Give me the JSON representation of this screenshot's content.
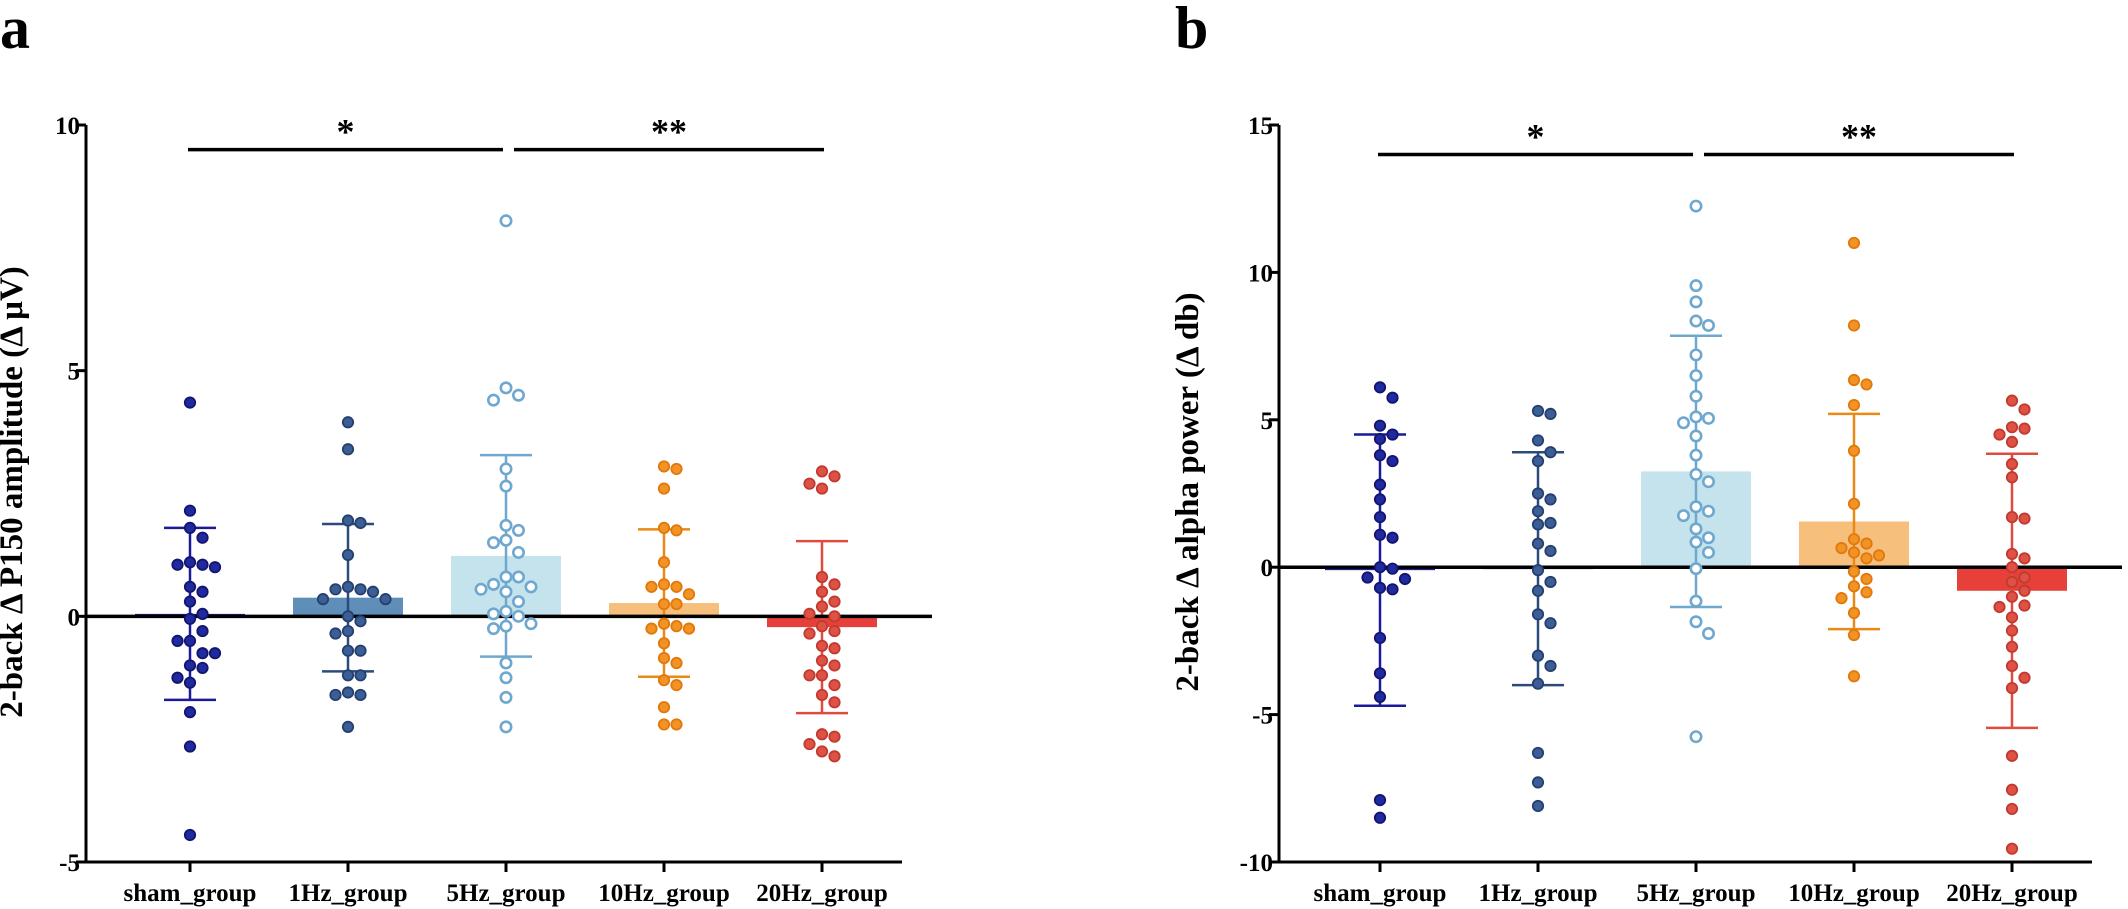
{
  "colors": {
    "sham_group": {
      "bar": "#1f1f9c",
      "point_fill": "#1f2a9e",
      "point_edge": "#141470",
      "error": "#1a1a9a",
      "hollow": false
    },
    "1Hz_group": {
      "bar": "#5f8fb9",
      "point_fill": "#3c5d96",
      "point_edge": "#24406e",
      "error": "#2c4b7d",
      "hollow": false
    },
    "5Hz_group": {
      "bar": "#c5e3ec",
      "point_fill": "#ffffff",
      "point_edge": "#6fa8cf",
      "error": "#6fa8cf",
      "hollow": true
    },
    "10Hz_group": {
      "bar": "#f6bf7c",
      "point_fill": "#f29325",
      "point_edge": "#e2780c",
      "error": "#e98a14",
      "hollow": false
    },
    "20Hz_group": {
      "bar": "#e7403a",
      "point_fill": "#de5145",
      "point_edge": "#c23a2f",
      "error": "#e04b40",
      "hollow": false
    }
  },
  "chart_data": [
    {
      "panel": "a",
      "type": "bar",
      "ylabel": "2-back Δ P150 amplitude (Δ μV)",
      "xlabel": "",
      "ylim": [
        -5,
        10
      ],
      "yticks": [
        -5,
        0,
        5,
        10
      ],
      "ytick_labels": [
        "-5",
        "0",
        "5",
        "10"
      ],
      "categories": [
        "sham_group",
        "1Hz_group",
        "5Hz_group",
        "10Hz_group",
        "20Hz_group"
      ],
      "means": [
        0.05,
        0.38,
        1.23,
        0.27,
        -0.22
      ],
      "sd": [
        1.75,
        1.5,
        2.05,
        1.5,
        1.75
      ],
      "points": [
        [
          4.35,
          2.15,
          1.8,
          1.6,
          1.1,
          1.05,
          1.05,
          1.0,
          0.6,
          0.5,
          0.3,
          0.05,
          -0.05,
          -0.3,
          -0.5,
          -0.5,
          -0.75,
          -0.75,
          -1.0,
          -1.05,
          -1.25,
          -1.35,
          -1.95,
          -2.65,
          -4.45
        ],
        [
          3.95,
          3.4,
          1.95,
          1.9,
          1.25,
          0.6,
          0.55,
          0.5,
          0.55,
          0.35,
          0.35,
          0.0,
          -0.1,
          -0.3,
          -0.35,
          -0.7,
          -0.7,
          -1.2,
          -1.2,
          -1.55,
          -1.6,
          -1.6,
          -2.25
        ],
        [
          8.05,
          4.65,
          4.5,
          4.4,
          3.0,
          2.65,
          1.85,
          1.75,
          1.55,
          1.5,
          1.3,
          0.8,
          0.8,
          0.65,
          0.6,
          0.55,
          0.5,
          0.3,
          0.1,
          0.05,
          0.0,
          -0.15,
          -0.2,
          -0.25,
          -0.95,
          -1.25,
          -1.65,
          -2.25
        ],
        [
          3.05,
          3.0,
          2.6,
          1.8,
          1.75,
          1.1,
          0.65,
          0.6,
          0.6,
          0.45,
          0.25,
          0.25,
          -0.15,
          -0.2,
          -0.25,
          -0.25,
          -0.55,
          -0.85,
          -0.95,
          -1.3,
          -1.4,
          -1.85,
          -2.2,
          -2.2
        ],
        [
          2.95,
          2.85,
          2.7,
          2.6,
          0.8,
          0.65,
          0.5,
          0.3,
          0.2,
          0.05,
          0.0,
          -0.2,
          -0.3,
          -0.35,
          -0.6,
          -0.65,
          -0.9,
          -1.0,
          -1.2,
          -1.2,
          -1.4,
          -1.6,
          -1.75,
          -2.4,
          -2.45,
          -2.6,
          -2.75,
          -2.85
        ]
      ],
      "significance": [
        {
          "from": 0,
          "to": 2,
          "label": "*",
          "y": 9.5
        },
        {
          "from": 2,
          "to": 4,
          "label": "**",
          "y": 9.5
        }
      ]
    },
    {
      "panel": "b",
      "type": "bar",
      "ylabel": "2-back Δ alpha power (Δ db)",
      "xlabel": "",
      "ylim": [
        -10,
        15
      ],
      "yticks": [
        -10,
        -5,
        0,
        5,
        10,
        15
      ],
      "ytick_labels": [
        "-10",
        "-5",
        "0",
        "5",
        "10",
        "15"
      ],
      "categories": [
        "sham_group",
        "1Hz_group",
        "5Hz_group",
        "10Hz_group",
        "20Hz_group"
      ],
      "means": [
        -0.1,
        -0.05,
        3.25,
        1.55,
        -0.8
      ],
      "sd": [
        4.6,
        3.95,
        4.6,
        3.65,
        4.65
      ],
      "points": [
        [
          6.1,
          5.75,
          4.8,
          4.5,
          4.35,
          3.8,
          3.6,
          2.8,
          2.3,
          1.7,
          1.1,
          1.0,
          0.0,
          -0.05,
          -0.35,
          -0.4,
          -0.7,
          -0.75,
          -2.4,
          -3.6,
          -4.4,
          -7.9,
          -8.5
        ],
        [
          5.3,
          5.2,
          4.3,
          3.9,
          3.6,
          2.5,
          2.3,
          1.9,
          1.5,
          1.45,
          0.8,
          0.55,
          -0.1,
          -0.5,
          -0.8,
          -1.6,
          -1.9,
          -3.0,
          -3.35,
          -3.95,
          -6.3,
          -7.3,
          -8.1
        ],
        [
          12.25,
          9.55,
          9.0,
          8.35,
          8.2,
          7.2,
          6.5,
          5.8,
          5.05,
          5.1,
          4.9,
          4.45,
          3.8,
          3.15,
          2.9,
          2.05,
          1.9,
          1.75,
          1.3,
          1.0,
          0.85,
          0.5,
          -0.05,
          -1.15,
          -1.85,
          -2.25,
          -5.75
        ],
        [
          11.0,
          8.2,
          6.35,
          6.2,
          5.5,
          3.95,
          2.15,
          0.95,
          0.8,
          0.65,
          0.5,
          0.4,
          0.3,
          -0.15,
          -0.4,
          -0.65,
          -0.85,
          -1.05,
          -1.55,
          -2.3,
          -3.7
        ],
        [
          5.65,
          5.35,
          4.75,
          4.7,
          4.5,
          4.25,
          3.5,
          3.05,
          1.7,
          1.65,
          0.45,
          0.3,
          0.0,
          -0.35,
          -0.5,
          -0.8,
          -1.0,
          -1.3,
          -1.35,
          -1.7,
          -2.15,
          -2.7,
          -3.35,
          -3.75,
          -4.1,
          -6.4,
          -7.55,
          -8.2,
          -9.55
        ]
      ],
      "significance": [
        {
          "from": 0,
          "to": 2,
          "label": "*",
          "y": 14.0
        },
        {
          "from": 2,
          "to": 4,
          "label": "**",
          "y": 14.0
        }
      ]
    }
  ]
}
